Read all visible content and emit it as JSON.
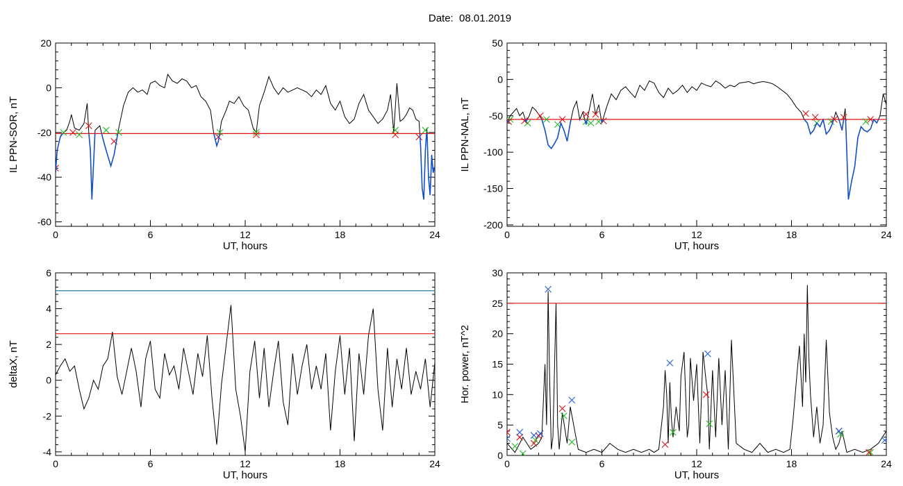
{
  "title": "Date:  08.01.2019",
  "colors": {
    "trace": "#000000",
    "below": "#1450c8",
    "threshold": "#e01010",
    "upper": "#1b7fa8",
    "mark_red": "#e01010",
    "mark_green": "#22bb22",
    "mark_blue": "#2060e0"
  },
  "chart_data": [
    {
      "type": "line",
      "id": "p1",
      "ylabel": "IL PPN-SOR, nT",
      "xlabel": "UT, hours",
      "xlim": [
        0,
        24
      ],
      "ylim": [
        -62,
        20
      ],
      "xticks": [
        0,
        6,
        12,
        18,
        24
      ],
      "yticks": [
        -60,
        -40,
        -20,
        0,
        20
      ],
      "threshold": -20.5,
      "series": [
        {
          "x": [
            0,
            0.1,
            0.3,
            0.5,
            0.7,
            0.9,
            1,
            1.2,
            1.5,
            1.8,
            2,
            2.1,
            2.2,
            2.3,
            2.5,
            2.8,
            3,
            3.2,
            3.5,
            3.7,
            3.9,
            4,
            4.3,
            4.6,
            4.9,
            5.2,
            5.5,
            5.8,
            6,
            6.3,
            6.6,
            6.9,
            7.1,
            7.4,
            7.7,
            8,
            8.3,
            8.6,
            8.9,
            9.2,
            9.5,
            9.8,
            10,
            10.2,
            10.3,
            10.5,
            10.8,
            11,
            11.3,
            11.6,
            11.9,
            12.2,
            12.5,
            12.7,
            12.9,
            13.2,
            13.5,
            13.8,
            14.1,
            14.4,
            14.7,
            15,
            15.3,
            15.6,
            15.9,
            16.2,
            16.5,
            16.8,
            17.1,
            17.4,
            17.7,
            18,
            18.3,
            18.6,
            18.9,
            19.2,
            19.5,
            19.8,
            20.1,
            20.4,
            20.7,
            21,
            21.2,
            21.4,
            21.6,
            21.8,
            22,
            22.2,
            22.4,
            22.6,
            22.8,
            23,
            23.1,
            23.2,
            23.3,
            23.4,
            23.5,
            23.6,
            23.7,
            23.8,
            23.9,
            24
          ],
          "y": [
            -38,
            -28,
            -22,
            -20,
            -19,
            -15,
            -12,
            -18,
            -19,
            -16,
            -7,
            -20,
            -28,
            -50,
            -19,
            -17,
            -23,
            -28,
            -35,
            -30,
            -22,
            -18,
            -8,
            -2,
            0,
            -2,
            -1,
            -3,
            2,
            3,
            1,
            0,
            6,
            3,
            2,
            4,
            3,
            0,
            1,
            -4,
            -6,
            -10,
            -20,
            -26,
            -24,
            -15,
            -10,
            -6,
            -7,
            -4,
            -8,
            -10,
            -18,
            -20,
            -8,
            -2,
            5,
            0,
            -3,
            0,
            -2,
            -1,
            0,
            -1,
            -2,
            -4,
            -1,
            -3,
            1,
            -7,
            -10,
            -6,
            -13,
            -16,
            -14,
            -7,
            -3,
            -10,
            -13,
            -16,
            -14,
            -10,
            -3,
            -20,
            2,
            -15,
            -14,
            -12,
            -9,
            -10,
            -14,
            -15,
            -26,
            -45,
            -50,
            -28,
            -18,
            -40,
            -48,
            -30,
            -38,
            -35
          ]
        }
      ],
      "marks_red": [
        [
          0,
          -36
        ],
        [
          1.1,
          -20
        ],
        [
          2.1,
          -17
        ],
        [
          3.7,
          -24
        ],
        [
          10.3,
          -22
        ],
        [
          12.7,
          -21
        ],
        [
          21.5,
          -21
        ],
        [
          23,
          -22
        ]
      ],
      "marks_green": [
        [
          0.5,
          -20
        ],
        [
          1.5,
          -21
        ],
        [
          3.2,
          -19
        ],
        [
          4,
          -20
        ],
        [
          10.4,
          -20
        ],
        [
          12.7,
          -20
        ],
        [
          21.5,
          -19
        ],
        [
          23.4,
          -19
        ]
      ]
    },
    {
      "type": "line",
      "id": "p2",
      "ylabel": "IL PPN-NAL, nT",
      "xlabel": "UT, hours",
      "xlim": [
        0,
        24
      ],
      "ylim": [
        -202,
        50
      ],
      "xticks": [
        0,
        6,
        12,
        18,
        24
      ],
      "yticks": [
        -200,
        -150,
        -100,
        -50,
        0,
        50
      ],
      "threshold": -55,
      "series": [
        {
          "x": [
            0,
            0.2,
            0.4,
            0.6,
            0.8,
            1,
            1.2,
            1.4,
            1.6,
            1.8,
            2,
            2.2,
            2.4,
            2.6,
            2.8,
            3,
            3.2,
            3.4,
            3.6,
            3.8,
            4,
            4.2,
            4.4,
            4.6,
            4.8,
            5,
            5.2,
            5.4,
            5.6,
            5.8,
            6,
            6.3,
            6.6,
            6.9,
            7.2,
            7.5,
            7.8,
            8.1,
            8.4,
            8.7,
            9,
            9.3,
            9.6,
            9.9,
            10.2,
            10.5,
            10.8,
            11.1,
            11.4,
            11.7,
            12,
            12.3,
            12.6,
            12.9,
            13.2,
            13.5,
            13.8,
            14.1,
            14.4,
            14.7,
            15,
            15.3,
            15.6,
            15.9,
            16.2,
            16.5,
            16.8,
            17.1,
            17.4,
            17.7,
            18,
            18.3,
            18.6,
            18.8,
            19,
            19.2,
            19.4,
            19.6,
            19.8,
            20,
            20.2,
            20.4,
            20.6,
            20.8,
            21,
            21.2,
            21.4,
            21.5,
            21.6,
            21.8,
            22,
            22.2,
            22.4,
            22.6,
            22.8,
            23,
            23.2,
            23.4,
            23.6,
            23.8,
            24
          ],
          "y": [
            -60,
            -50,
            -45,
            -40,
            -50,
            -45,
            -58,
            -50,
            -38,
            -42,
            -48,
            -55,
            -70,
            -90,
            -95,
            -88,
            -80,
            -60,
            -70,
            -85,
            -60,
            -40,
            -30,
            -55,
            -45,
            -62,
            -42,
            -20,
            -48,
            -35,
            -60,
            -38,
            -20,
            -28,
            -15,
            -10,
            -18,
            -25,
            -8,
            -15,
            -2,
            -5,
            -18,
            -25,
            -12,
            -20,
            -15,
            -8,
            -18,
            -10,
            -15,
            -5,
            -8,
            -10,
            -2,
            -6,
            -12,
            -8,
            -10,
            -5,
            -4,
            -3,
            -6,
            -4,
            -3,
            -4,
            -6,
            -10,
            -15,
            -20,
            -28,
            -38,
            -45,
            -55,
            -60,
            -75,
            -70,
            -60,
            -65,
            -55,
            -75,
            -70,
            -60,
            -45,
            -55,
            -70,
            -40,
            -100,
            -165,
            -140,
            -120,
            -80,
            -65,
            -70,
            -72,
            -68,
            -55,
            -60,
            -50,
            -20,
            -35
          ]
        }
      ],
      "marks_red": [
        [
          0.1,
          -58
        ],
        [
          1.1,
          -57
        ],
        [
          2.1,
          -50
        ],
        [
          3.5,
          -55
        ],
        [
          5,
          -48
        ],
        [
          5.6,
          -48
        ],
        [
          6.1,
          -57
        ],
        [
          18.9,
          -47
        ],
        [
          19.5,
          -52
        ],
        [
          20.7,
          -55
        ],
        [
          21.3,
          -52
        ],
        [
          23,
          -55
        ]
      ],
      "marks_green": [
        [
          0.2,
          -55
        ],
        [
          1.3,
          -60
        ],
        [
          2.5,
          -55
        ],
        [
          3.2,
          -62
        ],
        [
          5,
          -58
        ],
        [
          5.3,
          -60
        ],
        [
          5.8,
          -58
        ],
        [
          19.6,
          -60
        ],
        [
          20.5,
          -58
        ],
        [
          22.7,
          -58
        ]
      ]
    },
    {
      "type": "line",
      "id": "p3",
      "ylabel": "deltaX, nT",
      "xlabel": "UT, hours",
      "xlim": [
        0,
        24
      ],
      "ylim": [
        -4.2,
        6
      ],
      "xticks": [
        0,
        6,
        12,
        18,
        24
      ],
      "yticks": [
        -4,
        -2,
        0,
        2,
        4,
        6
      ],
      "threshold": 2.6,
      "upper_line": 5,
      "series": [
        {
          "x": [
            0,
            0.3,
            0.6,
            0.9,
            1.2,
            1.5,
            1.8,
            2.1,
            2.4,
            2.7,
            3,
            3.3,
            3.6,
            3.9,
            4.2,
            4.5,
            4.8,
            5.1,
            5.4,
            5.7,
            6,
            6.3,
            6.6,
            6.9,
            7.2,
            7.5,
            7.8,
            8.1,
            8.4,
            8.7,
            9,
            9.3,
            9.6,
            9.9,
            10.2,
            10.5,
            10.8,
            11.1,
            11.4,
            11.7,
            12,
            12.3,
            12.6,
            12.9,
            13.2,
            13.5,
            13.8,
            14.1,
            14.4,
            14.7,
            15,
            15.3,
            15.6,
            15.9,
            16.2,
            16.5,
            16.8,
            17.1,
            17.4,
            17.7,
            18,
            18.3,
            18.6,
            18.9,
            19.2,
            19.5,
            19.8,
            20.1,
            20.4,
            20.7,
            21,
            21.3,
            21.6,
            21.9,
            22.2,
            22.5,
            22.8,
            23.1,
            23.4,
            23.7,
            24
          ],
          "y": [
            0.3,
            0.8,
            1.2,
            0.5,
            0.8,
            -0.5,
            -1.6,
            -1,
            0,
            -0.5,
            0.8,
            1.2,
            2.7,
            0.2,
            -0.8,
            0.5,
            1.8,
            0.5,
            -1.5,
            1.2,
            2.2,
            -0.5,
            -1,
            1.5,
            0.3,
            0.8,
            -0.5,
            1.8,
            0.5,
            -0.8,
            1.5,
            0.2,
            2.5,
            -1,
            -3.6,
            -0.2,
            2,
            4.2,
            -0.5,
            -2,
            -4,
            0.5,
            2.2,
            -1,
            1.8,
            -1.5,
            0.5,
            2.2,
            -1.2,
            -2.5,
            1.5,
            -0.8,
            0.8,
            2,
            -0.5,
            0.8,
            -0.5,
            1.5,
            -2.8,
            0.5,
            2.5,
            -0.8,
            1.8,
            -3.4,
            1.5,
            -0.8,
            2.5,
            4,
            -0.5,
            -2.8,
            1.8,
            -1.5,
            1.2,
            -0.5,
            1.8,
            -0.8,
            0.5,
            -0.5,
            1.2,
            -1.5,
            1
          ]
        }
      ]
    },
    {
      "type": "line",
      "id": "p4",
      "ylabel": "Hor. power, nT^2",
      "xlabel": "UT, hours",
      "xlim": [
        0,
        24
      ],
      "ylim": [
        0,
        30
      ],
      "xticks": [
        0,
        6,
        12,
        18,
        24
      ],
      "yticks": [
        0,
        5,
        10,
        15,
        20,
        25,
        30
      ],
      "threshold": 25,
      "series": [
        {
          "x": [
            0,
            0.5,
            1,
            1.5,
            2,
            2.2,
            2.4,
            2.5,
            2.6,
            2.7,
            2.8,
            2.9,
            3.1,
            3.2,
            3.3,
            3.5,
            3.8,
            4,
            4.5,
            5,
            5.5,
            6,
            6.5,
            7,
            7.5,
            8,
            8.5,
            9,
            9.3,
            9.6,
            9.9,
            10,
            10.1,
            10.2,
            10.3,
            10.4,
            10.5,
            10.7,
            10.9,
            11,
            11.2,
            11.4,
            11.5,
            11.6,
            11.8,
            12,
            12.2,
            12.4,
            12.6,
            12.7,
            12.8,
            13,
            13.2,
            13.4,
            13.6,
            13.8,
            14,
            14.2,
            14.5,
            15,
            15.5,
            16,
            16.5,
            17,
            17.5,
            17.9,
            18.1,
            18.3,
            18.5,
            18.7,
            18.8,
            18.9,
            19,
            19.1,
            19.2,
            19.4,
            19.6,
            19.8,
            20,
            20.2,
            20.4,
            20.6,
            20.8,
            21,
            21.2,
            21.5,
            22,
            22.5,
            23,
            23.5,
            24
          ],
          "y": [
            2,
            0.5,
            3,
            1,
            2,
            3,
            15,
            5,
            27,
            12,
            1,
            3,
            25,
            5,
            1,
            7,
            2,
            8,
            1,
            0.5,
            1,
            0.5,
            2,
            1,
            0.5,
            1,
            0.5,
            1,
            0.5,
            1,
            8,
            14,
            10,
            2,
            12,
            6,
            3,
            8,
            4,
            13,
            17,
            3,
            5,
            16,
            9,
            15,
            2,
            17,
            12,
            10,
            1,
            14,
            3,
            16,
            5,
            14,
            1,
            19,
            2,
            1,
            0.5,
            2,
            0.5,
            1,
            0.5,
            1,
            6,
            12,
            18,
            8,
            20,
            12,
            28,
            16,
            10,
            3,
            8,
            2,
            5,
            19,
            7,
            3,
            1,
            2,
            4,
            0.5,
            1,
            0.5,
            1,
            2,
            4
          ]
        }
      ],
      "marks_red": [
        [
          0,
          3.8
        ],
        [
          0.8,
          3
        ],
        [
          1.7,
          2
        ],
        [
          2,
          3.2
        ],
        [
          3.5,
          7.7
        ],
        [
          10,
          1.8
        ],
        [
          12.6,
          10
        ],
        [
          21,
          4
        ],
        [
          22.9,
          0.5
        ]
      ],
      "marks_green": [
        [
          0.5,
          1.5
        ],
        [
          1,
          0.3
        ],
        [
          1.8,
          2.5
        ],
        [
          3.6,
          6.5
        ],
        [
          4.1,
          2.2
        ],
        [
          10.5,
          3.8
        ],
        [
          12.8,
          5.2
        ],
        [
          21.1,
          3.5
        ],
        [
          23,
          0.5
        ]
      ],
      "marks_blue": [
        [
          0,
          2.8
        ],
        [
          0.8,
          3.8
        ],
        [
          1.7,
          3.3
        ],
        [
          2.1,
          3.6
        ],
        [
          2.6,
          27.3
        ],
        [
          4.1,
          9.1
        ],
        [
          10.3,
          15.2
        ],
        [
          12.7,
          16.7
        ],
        [
          21,
          4
        ],
        [
          23.9,
          2.5
        ]
      ]
    }
  ]
}
